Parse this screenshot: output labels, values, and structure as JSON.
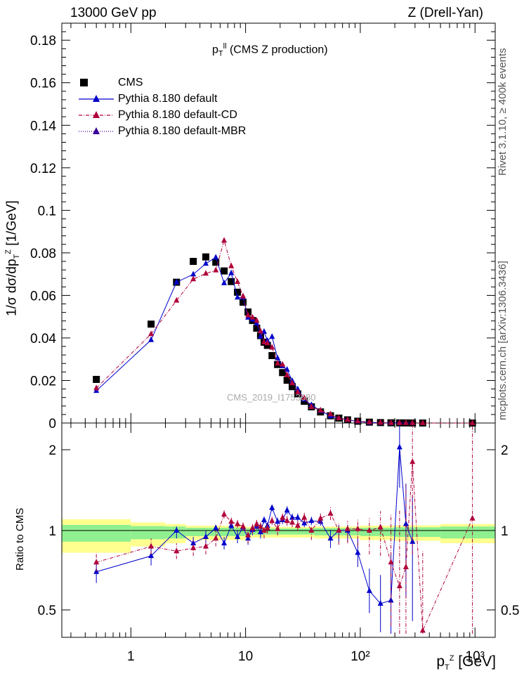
{
  "header": {
    "left": "13000 GeV pp",
    "right": "Z (Drell-Yan)"
  },
  "side_text": {
    "top": "Rivet 3.1.10, ≥ 400k events",
    "bottom": "mcplots.cern.ch [arXiv:1306.3436]"
  },
  "plot_title": {
    "main": "p",
    "sup": "ll",
    "sub": "T",
    "rest": " (CMS Z production)"
  },
  "watermark": "CMS_2019_I1753680",
  "ylabel_main": "1/σ dσ/dp",
  "ylabel_main_sup": "Z",
  "ylabel_main_sub": "T",
  "ylabel_main_unit": " [1/GeV]",
  "ylabel_ratio": "Ratio to CMS",
  "xlabel": {
    "main": "p",
    "sup": "Z",
    "sub": "T",
    "unit": " [GeV]"
  },
  "legend": [
    {
      "label": "CMS",
      "color": "#000000",
      "style": "square"
    },
    {
      "label": "Pythia 8.180 default",
      "color": "#0000cc",
      "style": "solid"
    },
    {
      "label": "Pythia 8.180 default-CD",
      "color": "#b0003a",
      "style": "dashdot"
    },
    {
      "label": "Pythia 8.180 default-MBR",
      "color": "#3a0099",
      "style": "dotted"
    }
  ],
  "chart_data": {
    "type": "scatter",
    "xscale": "log",
    "xlim": [
      0.25,
      1500
    ],
    "ylim": [
      0,
      0.188
    ],
    "ratio_ylim": [
      0.35,
      2.3
    ],
    "yticks": [
      "0",
      "0.02",
      "0.04",
      "0.06",
      "0.08",
      "0.1",
      "0.12",
      "0.14",
      "0.16",
      "0.18"
    ],
    "ratio_yticks": [
      "0.5",
      "1",
      "2"
    ],
    "xticks": [
      "1",
      "10",
      "10²",
      "10³"
    ],
    "x": [
      0.5,
      1.5,
      2.5,
      3.5,
      4.5,
      5.5,
      6.5,
      7.5,
      8.5,
      9.5,
      10.5,
      11.5,
      12.5,
      13.5,
      14.5,
      15.5,
      17,
      19,
      21,
      23,
      25.5,
      28.5,
      32.5,
      37.5,
      45,
      55,
      65,
      77.5,
      95,
      120,
      150,
      185,
      220,
      250,
      285,
      350,
      950
    ],
    "cms": [
      0.0205,
      0.0465,
      0.0662,
      0.076,
      0.0781,
      0.0756,
      0.0715,
      0.0665,
      0.0615,
      0.0568,
      0.0522,
      0.0482,
      0.0446,
      0.0411,
      0.038,
      0.0365,
      0.0317,
      0.0275,
      0.0237,
      0.0201,
      0.0171,
      0.0137,
      0.0102,
      0.0076,
      0.0052,
      0.0034,
      0.0023,
      0.0015,
      0.00085,
      0.00041,
      0.0002,
      0.0001,
      6e-05,
      4e-05,
      2e-05,
      1e-05,
      1e-06
    ],
    "series": [
      {
        "name": "Pythia 8.180 default",
        "color": "#0000cc",
        "ratio": [
          0.74,
          0.84,
          1.0,
          0.92,
          0.96,
          1.03,
          0.92,
          1.06,
          0.96,
          1.04,
          0.95,
          1.01,
          1.05,
          0.99,
          1.13,
          1.06,
          1.28,
          1.11,
          1.13,
          1.25,
          1.16,
          1.16,
          1.09,
          1.12,
          1.11,
          0.95,
          1.0,
          1.0,
          0.86,
          0.62,
          0.54,
          0.56,
          2.03,
          1.08,
          0.93,
          null,
          null
        ],
        "err": [
          0.07,
          0.06,
          0.05,
          0.04,
          0.04,
          0.04,
          0.04,
          0.04,
          0.04,
          0.04,
          0.04,
          0.04,
          0.04,
          0.04,
          0.04,
          0.04,
          0.04,
          0.05,
          0.05,
          0.05,
          0.05,
          0.05,
          0.05,
          0.05,
          0.05,
          0.06,
          0.07,
          0.07,
          0.09,
          0.14,
          0.18,
          0.3,
          0.5,
          0.5,
          0.5,
          null,
          null
        ]
      },
      {
        "name": "Pythia 8.180 default-CD",
        "color": "#b0003a",
        "ratio": [
          0.8,
          0.9,
          0.87,
          0.89,
          0.9,
          0.95,
          1.2,
          1.11,
          1.08,
          1.05,
          0.97,
          1.03,
          1.08,
          1.05,
          1.0,
          1.03,
          1.12,
          1.02,
          1.16,
          1.12,
          1.1,
          1.06,
          1.16,
          1.0,
          1.15,
          1.21,
          1.0,
          1.02,
          1.02,
          1.0,
          1.04,
          0.8,
          0.65,
          0.77,
          1.85,
          0.37,
          1.15
        ],
        "err": [
          0.06,
          0.05,
          0.05,
          0.05,
          0.05,
          0.05,
          0.05,
          0.05,
          0.05,
          0.05,
          0.05,
          0.05,
          0.05,
          0.05,
          0.05,
          0.05,
          0.05,
          0.05,
          0.05,
          0.06,
          0.06,
          0.06,
          0.06,
          0.06,
          0.07,
          0.08,
          0.09,
          0.1,
          0.12,
          0.15,
          0.2,
          0.4,
          0.6,
          0.8,
          1.0,
          0.5,
          1.2
        ]
      }
    ],
    "band_edges": [
      0.25,
      1,
      2,
      3,
      10,
      40,
      100,
      200,
      500,
      1500
    ],
    "band_inner": [
      0.07,
      0.055,
      0.05,
      0.035,
      0.025,
      0.03,
      0.035,
      0.04,
      0.05
    ],
    "band_outer": [
      0.14,
      0.1,
      0.08,
      0.06,
      0.045,
      0.05,
      0.06,
      0.065,
      0.08
    ]
  }
}
